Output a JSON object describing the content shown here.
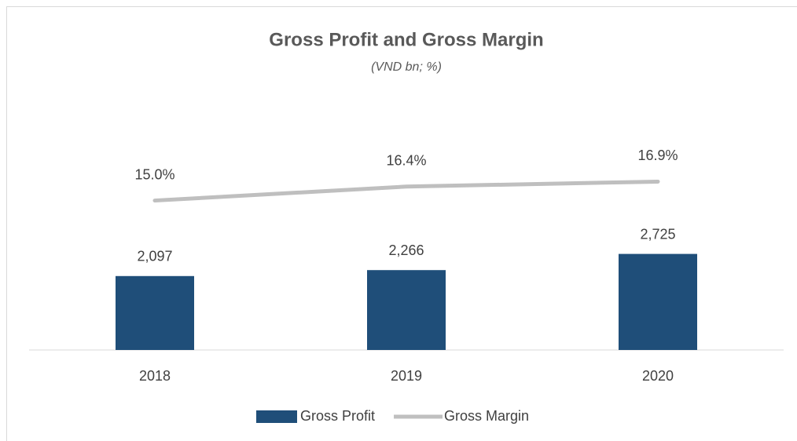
{
  "chart_data": {
    "type": "bar",
    "title": "Gross Profit and Gross Margin",
    "subtitle": "(VND bn; %)",
    "categories": [
      "2018",
      "2019",
      "2020"
    ],
    "series": [
      {
        "name": "Gross Profit",
        "type": "bar",
        "color": "#1f4e79",
        "values": [
          2097,
          2266,
          2725
        ],
        "value_labels": [
          "2,097",
          "2,266",
          "2,725"
        ]
      },
      {
        "name": "Gross Margin",
        "type": "line",
        "axis": "y2",
        "color": "#bfbfbf",
        "values": [
          15.0,
          16.4,
          16.9
        ],
        "value_labels": [
          "15.0%",
          "16.4%",
          "16.9%"
        ]
      }
    ],
    "ylim": [
      0,
      6500
    ],
    "y2lim": [
      0,
      23
    ],
    "legend": "bottom"
  }
}
